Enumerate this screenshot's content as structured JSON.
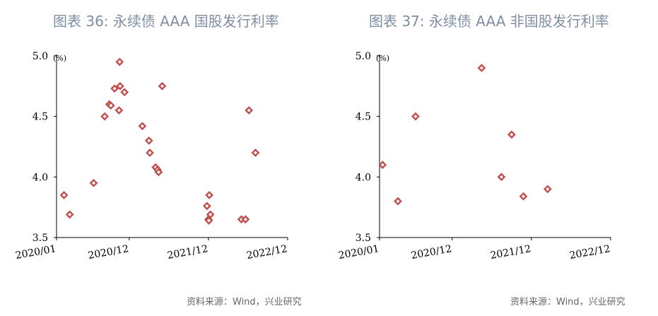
{
  "chart_data": [
    {
      "type": "scatter",
      "title": "图表 36: 永续债 AAA 国股发行利率",
      "source": "资料来源：Wind，兴业研究",
      "unit": "(%)",
      "x_ticks": [
        "2020/01",
        "2020/12",
        "2021/12",
        "2022/12"
      ],
      "y_ticks": [
        "5.0",
        "4.5",
        "4.0",
        "3.5"
      ],
      "xlim": [
        "2020-01",
        "2022-12"
      ],
      "ylim": [
        3.5,
        5.0
      ],
      "marker_color": "#c0504d",
      "points": [
        {
          "x": "2020-02-05",
          "y": 3.85
        },
        {
          "x": "2020-03-01",
          "y": 3.69
        },
        {
          "x": "2020-06-20",
          "y": 3.95
        },
        {
          "x": "2020-08-10",
          "y": 4.5
        },
        {
          "x": "2020-09-01",
          "y": 4.6
        },
        {
          "x": "2020-09-08",
          "y": 4.59
        },
        {
          "x": "2020-09-25",
          "y": 4.73
        },
        {
          "x": "2020-10-15",
          "y": 4.55
        },
        {
          "x": "2020-10-18",
          "y": 4.95
        },
        {
          "x": "2020-10-20",
          "y": 4.75
        },
        {
          "x": "2020-11-10",
          "y": 4.7
        },
        {
          "x": "2021-02-01",
          "y": 4.42
        },
        {
          "x": "2021-03-01",
          "y": 4.3
        },
        {
          "x": "2021-03-05",
          "y": 4.2
        },
        {
          "x": "2021-04-01",
          "y": 4.08
        },
        {
          "x": "2021-04-10",
          "y": 4.06
        },
        {
          "x": "2021-04-15",
          "y": 4.04
        },
        {
          "x": "2021-05-01",
          "y": 4.75
        },
        {
          "x": "2021-11-25",
          "y": 3.76
        },
        {
          "x": "2021-12-01",
          "y": 3.65
        },
        {
          "x": "2021-12-03",
          "y": 3.64
        },
        {
          "x": "2021-12-05",
          "y": 3.85
        },
        {
          "x": "2021-12-10",
          "y": 3.69
        },
        {
          "x": "2022-05-01",
          "y": 3.65
        },
        {
          "x": "2022-05-20",
          "y": 3.65
        },
        {
          "x": "2022-06-05",
          "y": 4.55
        },
        {
          "x": "2022-07-05",
          "y": 4.2
        }
      ]
    },
    {
      "type": "scatter",
      "title": "图表 37: 永续债 AAA 非国股发行利率",
      "source": "资料来源：Wind，兴业研究",
      "unit": "(%)",
      "x_ticks": [
        "2020/01",
        "2020/12",
        "2021/12",
        "2022/12"
      ],
      "y_ticks": [
        "5.0",
        "4.5",
        "4.0",
        "3.5"
      ],
      "xlim": [
        "2020-01",
        "2022-12"
      ],
      "ylim": [
        3.5,
        5.0
      ],
      "marker_color": "#c0504d",
      "points": [
        {
          "x": "2020-01-15",
          "y": 4.1
        },
        {
          "x": "2020-03-25",
          "y": 3.8
        },
        {
          "x": "2020-06-15",
          "y": 4.5
        },
        {
          "x": "2021-04-15",
          "y": 4.9
        },
        {
          "x": "2021-07-15",
          "y": 4.0
        },
        {
          "x": "2021-09-01",
          "y": 4.35
        },
        {
          "x": "2021-10-25",
          "y": 3.84
        },
        {
          "x": "2022-02-15",
          "y": 3.9
        }
      ]
    }
  ]
}
